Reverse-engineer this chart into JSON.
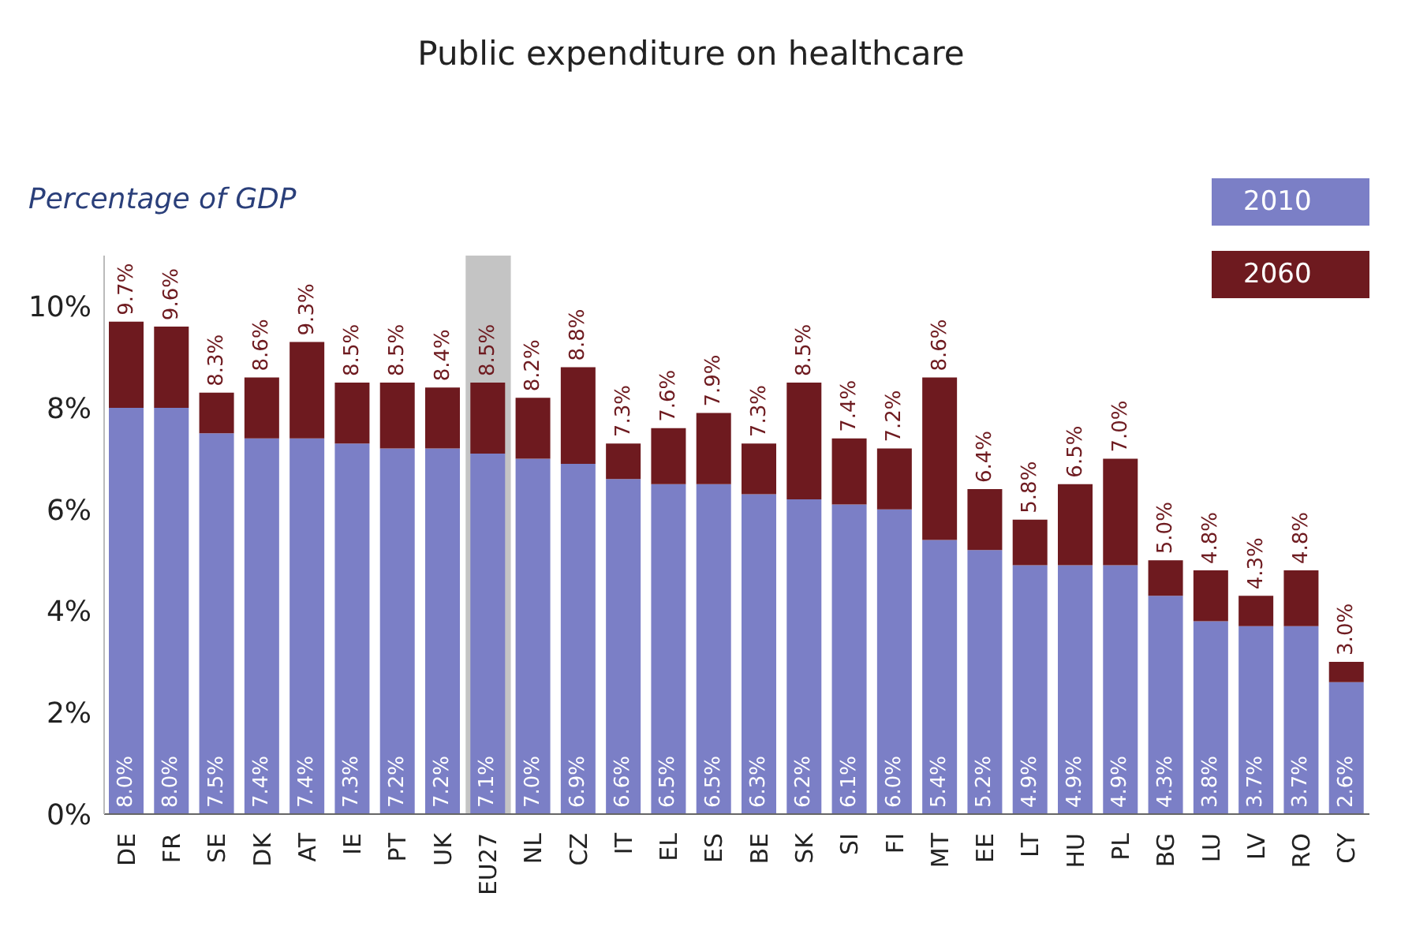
{
  "chart_data": {
    "type": "bar",
    "title": "Public expenditure on healthcare",
    "ylabel": "Percentage of GDP",
    "stacked": true,
    "categories": [
      "DE",
      "FR",
      "SE",
      "DK",
      "AT",
      "IE",
      "PT",
      "UK",
      "EU27",
      "NL",
      "CZ",
      "IT",
      "EL",
      "ES",
      "BE",
      "SK",
      "SI",
      "FI",
      "MT",
      "EE",
      "LT",
      "HU",
      "PL",
      "BG",
      "LU",
      "LV",
      "RO",
      "CY"
    ],
    "series": [
      {
        "name": "2010",
        "color": "#7b7fc6",
        "values": [
          8.0,
          8.0,
          7.5,
          7.4,
          7.4,
          7.3,
          7.2,
          7.2,
          7.1,
          7.0,
          6.9,
          6.6,
          6.5,
          6.5,
          6.3,
          6.2,
          6.1,
          6.0,
          5.4,
          5.2,
          4.9,
          4.9,
          4.9,
          4.3,
          3.8,
          3.7,
          3.7,
          2.6
        ],
        "value_labels": [
          "8.0%",
          "8.0%",
          "7.5%",
          "7.4%",
          "7.4%",
          "7.3%",
          "7.2%",
          "7.2%",
          "7.1%",
          "7.0%",
          "6.9%",
          "6.6%",
          "6.5%",
          "6.5%",
          "6.3%",
          "6.2%",
          "6.1%",
          "6.0%",
          "5.4%",
          "5.2%",
          "4.9%",
          "4.9%",
          "4.9%",
          "4.3%",
          "3.8%",
          "3.7%",
          "3.7%",
          "2.6%"
        ]
      },
      {
        "name": "2060",
        "color": "#6e1a1f",
        "values": [
          1.7,
          1.6,
          0.8,
          1.2,
          1.9,
          1.2,
          1.3,
          1.2,
          1.4,
          1.2,
          1.9,
          0.7,
          1.1,
          1.4,
          1.0,
          2.3,
          1.3,
          1.2,
          3.2,
          1.2,
          0.9,
          1.6,
          2.1,
          0.7,
          1.0,
          0.6,
          1.1,
          0.4
        ]
      }
    ],
    "annotations": [
      {
        "text": "9.7%",
        "x": "DE",
        "y": 9.7
      },
      {
        "text": "9.6%",
        "x": "FR",
        "y": 9.6
      },
      {
        "text": "8.3%",
        "x": "SE",
        "y": 8.3
      },
      {
        "text": "8.6%",
        "x": "DK",
        "y": 8.6
      },
      {
        "text": "9.3%",
        "x": "AT",
        "y": 9.3
      },
      {
        "text": "8.5%",
        "x": "IE",
        "y": 8.5
      },
      {
        "text": "8.5%",
        "x": "PT",
        "y": 8.5
      },
      {
        "text": "8.4%",
        "x": "UK",
        "y": 8.4
      },
      {
        "text": "8.5%",
        "x": "EU27",
        "y": 8.5
      },
      {
        "text": "8.2%",
        "x": "NL",
        "y": 8.2
      },
      {
        "text": "8.8%",
        "x": "CZ",
        "y": 8.8
      },
      {
        "text": "7.3%",
        "x": "IT",
        "y": 7.3
      },
      {
        "text": "7.6%",
        "x": "EL",
        "y": 7.6
      },
      {
        "text": "7.9%",
        "x": "ES",
        "y": 7.9
      },
      {
        "text": "7.3%",
        "x": "BE",
        "y": 7.3
      },
      {
        "text": "8.5%",
        "x": "SK",
        "y": 8.5
      },
      {
        "text": "7.4%",
        "x": "SI",
        "y": 7.4
      },
      {
        "text": "7.2%",
        "x": "FI",
        "y": 7.2
      },
      {
        "text": "8.6%",
        "x": "MT",
        "y": 8.6
      },
      {
        "text": "6.4%",
        "x": "EE",
        "y": 6.4
      },
      {
        "text": "5.8%",
        "x": "LT",
        "y": 5.8
      },
      {
        "text": "6.5%",
        "x": "HU",
        "y": 6.5
      },
      {
        "text": "7.0%",
        "x": "PL",
        "y": 7.0
      },
      {
        "text": "5.0%",
        "x": "BG",
        "y": 5.0
      },
      {
        "text": "4.8%",
        "x": "LU",
        "y": 4.8
      },
      {
        "text": "4.3%",
        "x": "LV",
        "y": 4.3
      },
      {
        "text": "4.8%",
        "x": "RO",
        "y": 4.8
      },
      {
        "text": "3.0%",
        "x": "CY",
        "y": 3.0
      }
    ],
    "bands": [
      {
        "axis": "x",
        "from": "EU27",
        "to": "EU27",
        "color": "#c4c4c4"
      }
    ],
    "ylim": [
      0,
      11
    ],
    "yticks": [
      {
        "value": 0,
        "label": "0%"
      },
      {
        "value": 2,
        "label": "2%"
      },
      {
        "value": 4,
        "label": "4%"
      },
      {
        "value": 6,
        "label": "6%"
      },
      {
        "value": 8,
        "label": "8%"
      },
      {
        "value": 10,
        "label": "10%"
      }
    ],
    "legend": "top right",
    "grid": false
  }
}
